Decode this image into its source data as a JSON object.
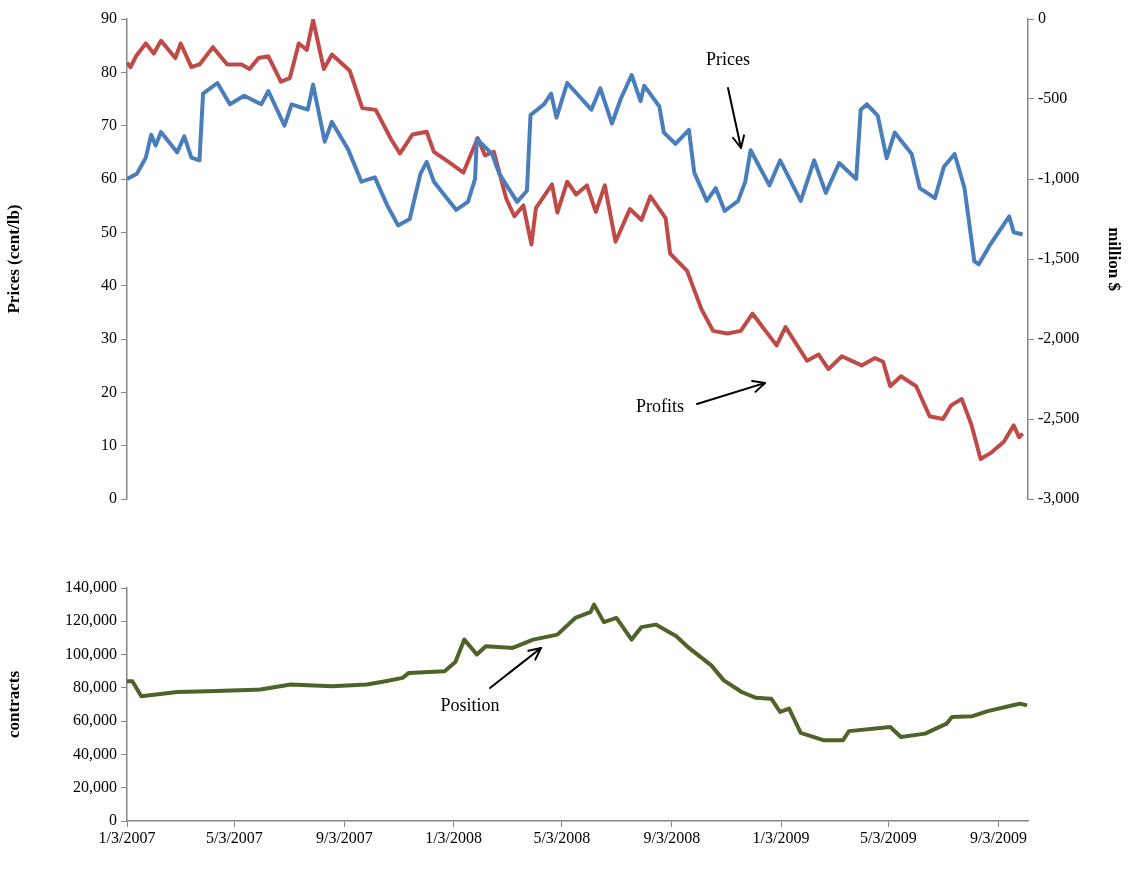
{
  "chart_data": [
    {
      "type": "line",
      "ylabel": "Prices (cent/lb)",
      "y2label": "million $",
      "tick_labels": "y",
      "xlim": [
        "2007-01-03",
        "2009-10-06"
      ],
      "ylim": [
        0,
        90
      ],
      "yticks": [
        0,
        10,
        20,
        30,
        40,
        50,
        60,
        70,
        80,
        90
      ],
      "y2lim": [
        -3000,
        0
      ],
      "y2ticks": [
        {
          "value": -3000,
          "label": "-3,000"
        },
        {
          "value": -2500,
          "label": "-2,500"
        },
        {
          "value": -2000,
          "label": "-2,000"
        },
        {
          "value": -1500,
          "label": "-1,500"
        },
        {
          "value": -1000,
          "label": "-1,000"
        },
        -500,
        0
      ],
      "series": [
        {
          "color": "#4a7ebb",
          "x": [
            "2007-01-03",
            "2007-01-14",
            "2007-01-24",
            "2007-01-30",
            "2007-02-04",
            "2007-02-10",
            "2007-02-28",
            "2007-03-08",
            "2007-03-16",
            "2007-03-25",
            "2007-03-29",
            "2007-04-14",
            "2007-04-28",
            "2007-05-14",
            "2007-06-02",
            "2007-06-10",
            "2007-06-28",
            "2007-07-06",
            "2007-07-24",
            "2007-07-30",
            "2007-08-12",
            "2007-08-20",
            "2007-09-07",
            "2007-09-22",
            "2007-10-07",
            "2007-10-21",
            "2007-11-02",
            "2007-11-15",
            "2007-11-27",
            "2007-12-04",
            "2007-12-12",
            "2008-01-06",
            "2008-01-19",
            "2008-01-27",
            "2008-01-29",
            "2008-02-15",
            "2008-02-23",
            "2008-03-14",
            "2008-03-25",
            "2008-03-29",
            "2008-04-13",
            "2008-04-21",
            "2008-04-27",
            "2008-05-09",
            "2008-06-05",
            "2008-06-15",
            "2008-06-28",
            "2008-07-08",
            "2008-07-20",
            "2008-07-30",
            "2008-08-03",
            "2008-08-20",
            "2008-08-25",
            "2008-09-07",
            "2008-09-22",
            "2008-09-28",
            "2008-10-12",
            "2008-10-22",
            "2008-11-01",
            "2008-11-16",
            "2008-11-24",
            "2008-11-30",
            "2008-12-21",
            "2009-01-02",
            "2009-01-25",
            "2009-02-09",
            "2009-02-22",
            "2009-03-09",
            "2009-03-28",
            "2009-04-02",
            "2009-04-09",
            "2009-04-21",
            "2009-05-01",
            "2009-05-10",
            "2009-05-29",
            "2009-06-07",
            "2009-06-24",
            "2009-07-04",
            "2009-07-16",
            "2009-07-27",
            "2009-08-07",
            "2009-08-12",
            "2009-08-24",
            "2009-09-15",
            "2009-09-20",
            "2009-09-30"
          ],
          "values": [
            60,
            61,
            64,
            68.3,
            66.3,
            68.8,
            65,
            68,
            64,
            63.5,
            76,
            78,
            74,
            75.6,
            74,
            76.5,
            70,
            74,
            73,
            77.7,
            67,
            70.7,
            65.6,
            59.5,
            60.3,
            55,
            51.3,
            52.5,
            61,
            63.2,
            59.5,
            54.2,
            55.7,
            60,
            67.5,
            64.7,
            61,
            55.7,
            57.8,
            72,
            74,
            76,
            71.5,
            78,
            73,
            77,
            70.4,
            75.1,
            79.5,
            74.6,
            77.5,
            73.6,
            68.7,
            66.6,
            69.2,
            61.2,
            55.9,
            58.3,
            54,
            55.9,
            59.5,
            65.4,
            58.8,
            63.5,
            55.9,
            63.5,
            57.4,
            63,
            60,
            73,
            74,
            71.9,
            63.9,
            68.7,
            64.7,
            58.3,
            56.4,
            62.3,
            64.7,
            58.3,
            44.6,
            44,
            47.5,
            53,
            50,
            49.6
          ]
        },
        {
          "color": "#be4b48",
          "axis": "y2",
          "x": [
            "2007-01-03",
            "2007-01-07",
            "2007-01-13",
            "2007-01-24",
            "2007-02-02",
            "2007-02-10",
            "2007-02-26",
            "2007-03-04",
            "2007-03-16",
            "2007-03-25",
            "2007-04-09",
            "2007-04-25",
            "2007-05-11",
            "2007-05-20",
            "2007-05-30",
            "2007-06-10",
            "2007-06-24",
            "2007-07-04",
            "2007-07-14",
            "2007-07-23",
            "2007-07-30",
            "2007-08-11",
            "2007-08-20",
            "2007-09-09",
            "2007-09-23",
            "2007-10-08",
            "2007-10-25",
            "2007-11-04",
            "2007-11-18",
            "2007-12-04",
            "2007-12-12",
            "2007-12-28",
            "2008-01-14",
            "2008-01-30",
            "2008-02-07",
            "2008-02-17",
            "2008-03-02",
            "2008-03-11",
            "2008-03-21",
            "2008-03-30",
            "2008-04-04",
            "2008-04-22",
            "2008-04-28",
            "2008-05-09",
            "2008-05-19",
            "2008-05-31",
            "2008-06-10",
            "2008-06-20",
            "2008-07-02",
            "2008-07-18",
            "2008-07-31",
            "2008-08-10",
            "2008-08-27",
            "2008-09-01",
            "2008-09-20",
            "2008-10-06",
            "2008-10-19",
            "2008-11-04",
            "2008-11-19",
            "2008-12-02",
            "2008-12-29",
            "2009-01-08",
            "2009-02-01",
            "2009-02-14",
            "2009-02-25",
            "2009-03-12",
            "2009-04-03",
            "2009-04-18",
            "2009-04-27",
            "2009-05-05",
            "2009-05-17",
            "2009-06-03",
            "2009-06-18",
            "2009-07-03",
            "2009-07-12",
            "2009-07-24",
            "2009-08-04",
            "2009-08-14",
            "2009-08-26",
            "2009-09-09",
            "2009-09-20",
            "2009-09-26",
            "2009-09-30"
          ],
          "values": [
            -273,
            -301,
            -233,
            -153,
            -216,
            -136,
            -244,
            -153,
            -301,
            -284,
            -176,
            -284,
            -284,
            -313,
            -244,
            -233,
            -392,
            -369,
            -153,
            -193,
            -6,
            -313,
            -222,
            -324,
            -557,
            -568,
            -750,
            -841,
            -722,
            -705,
            -830,
            -892,
            -960,
            -744,
            -852,
            -830,
            -1125,
            -1233,
            -1165,
            -1409,
            -1182,
            -1034,
            -1210,
            -1017,
            -1097,
            -1040,
            -1205,
            -1040,
            -1392,
            -1188,
            -1256,
            -1108,
            -1244,
            -1466,
            -1574,
            -1813,
            -1949,
            -1966,
            -1949,
            -1841,
            -2040,
            -1926,
            -2136,
            -2097,
            -2188,
            -2108,
            -2165,
            -2119,
            -2142,
            -2295,
            -2233,
            -2295,
            -2483,
            -2500,
            -2415,
            -2375,
            -2540,
            -2750,
            -2710,
            -2642,
            -2540,
            -2614,
            -2591
          ]
        }
      ],
      "annotations": [
        "Prices",
        "Profits"
      ]
    },
    {
      "type": "line",
      "ylabel": "contracts",
      "xlim": [
        "2007-01-03",
        "2009-10-06"
      ],
      "xticks": [
        {
          "value": "2007-01-03",
          "label": "1/3/2007"
        },
        {
          "value": "2007-05-03",
          "label": "5/3/2007"
        },
        {
          "value": "2007-09-03",
          "label": "9/3/2007"
        },
        {
          "value": "2008-01-03",
          "label": "1/3/2008"
        },
        {
          "value": "2008-05-03",
          "label": "5/3/2008"
        },
        {
          "value": "2008-09-03",
          "label": "9/3/2008"
        },
        {
          "value": "2009-01-03",
          "label": "1/3/2009"
        },
        {
          "value": "2009-05-03",
          "label": "5/3/2009"
        },
        {
          "value": "2009-09-03",
          "label": "9/3/2009"
        }
      ],
      "ylim": [
        0,
        140000
      ],
      "yticks": [
        0,
        {
          "value": 20000,
          "label": "20,000"
        },
        {
          "value": 40000,
          "label": "40,000"
        },
        {
          "value": 60000,
          "label": "60,000"
        },
        {
          "value": 80000,
          "label": "80,000"
        },
        {
          "value": 100000,
          "label": "100,000"
        },
        {
          "value": 120000,
          "label": "120,000"
        },
        {
          "value": 140000,
          "label": "140,000"
        }
      ],
      "series": [
        {
          "color": "#4f6228",
          "x": [
            "2007-01-03",
            "2007-01-09",
            "2007-01-19",
            "2007-02-28",
            "2007-04-03",
            "2007-06-01",
            "2007-07-05",
            "2007-08-20",
            "2007-09-28",
            "2007-10-19",
            "2007-11-07",
            "2007-11-14",
            "2007-12-24",
            "2008-01-05",
            "2008-01-15",
            "2008-01-29",
            "2008-02-08",
            "2008-03-09",
            "2008-04-01",
            "2008-04-28",
            "2008-05-18",
            "2008-06-04",
            "2008-06-08",
            "2008-06-19",
            "2008-07-03",
            "2008-07-20",
            "2008-07-31",
            "2008-08-16",
            "2008-09-08",
            "2008-09-22",
            "2008-10-17",
            "2008-10-31",
            "2008-11-20",
            "2008-12-06",
            "2008-12-23",
            "2009-01-02",
            "2009-01-12",
            "2009-01-25",
            "2009-02-20",
            "2009-03-13",
            "2009-03-20",
            "2009-05-05",
            "2009-05-17",
            "2009-06-13",
            "2009-07-07",
            "2009-07-13",
            "2009-08-05",
            "2009-08-22",
            "2009-09-27",
            "2009-10-05"
          ],
          "values": [
            84000,
            84000,
            75000,
            77500,
            78000,
            79000,
            82000,
            81000,
            82000,
            84000,
            86000,
            89000,
            90000,
            95500,
            109000,
            100000,
            105000,
            104000,
            109000,
            112000,
            122000,
            125500,
            130000,
            119500,
            122000,
            109000,
            116500,
            118000,
            111000,
            104000,
            93500,
            84500,
            77500,
            74000,
            73500,
            65500,
            67500,
            53000,
            48500,
            48500,
            54000,
            56500,
            50500,
            52500,
            58500,
            62500,
            63000,
            66000,
            70500,
            69500
          ]
        }
      ],
      "annotations": [
        "Position"
      ]
    }
  ]
}
